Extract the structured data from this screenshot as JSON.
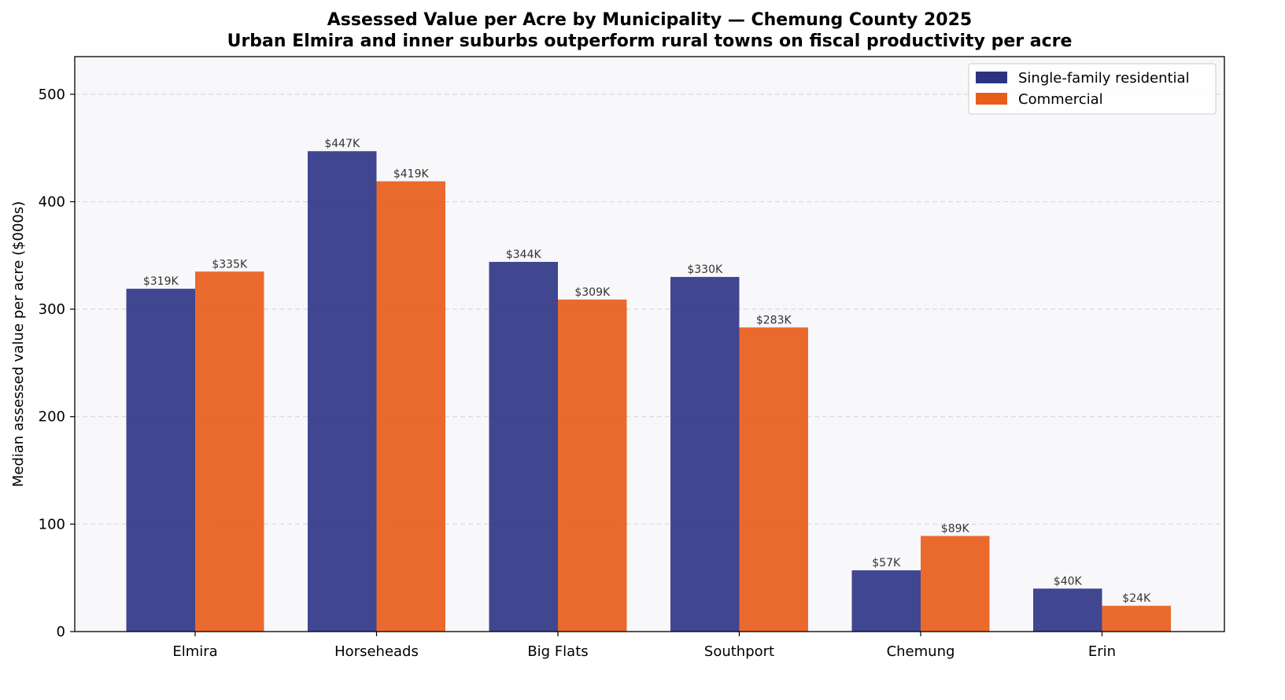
{
  "chart_data": {
    "type": "bar",
    "title": "Assessed Value per Acre by Municipality — Chemung County 2025",
    "subtitle": "Urban Elmira and inner suburbs outperform rural towns on fiscal productivity per acre",
    "xlabel": "",
    "ylabel": "Median assessed value per acre ($000s)",
    "ylim": [
      0,
      535
    ],
    "yticks": [
      0,
      100,
      200,
      300,
      400,
      500
    ],
    "grid": true,
    "legend_position": "top-right",
    "categories": [
      "Elmira",
      "Horseheads",
      "Big Flats",
      "Southport",
      "Chemung",
      "Erin"
    ],
    "series": [
      {
        "name": "Single-family residential",
        "color": "#2b3284",
        "values": [
          319,
          447,
          344,
          330,
          57,
          40
        ],
        "labels": [
          "$319K",
          "$447K",
          "$344K",
          "$330K",
          "$57K",
          "$40K"
        ]
      },
      {
        "name": "Commercial",
        "color": "#e85d1c",
        "values": [
          335,
          419,
          309,
          283,
          89,
          24
        ],
        "labels": [
          "$335K",
          "$419K",
          "$309K",
          "$283K",
          "$89K",
          "$24K"
        ]
      }
    ]
  },
  "colors": {
    "plot_background": "#f8f8fb",
    "grid": "#d3d3d8",
    "axis": "#000000"
  }
}
